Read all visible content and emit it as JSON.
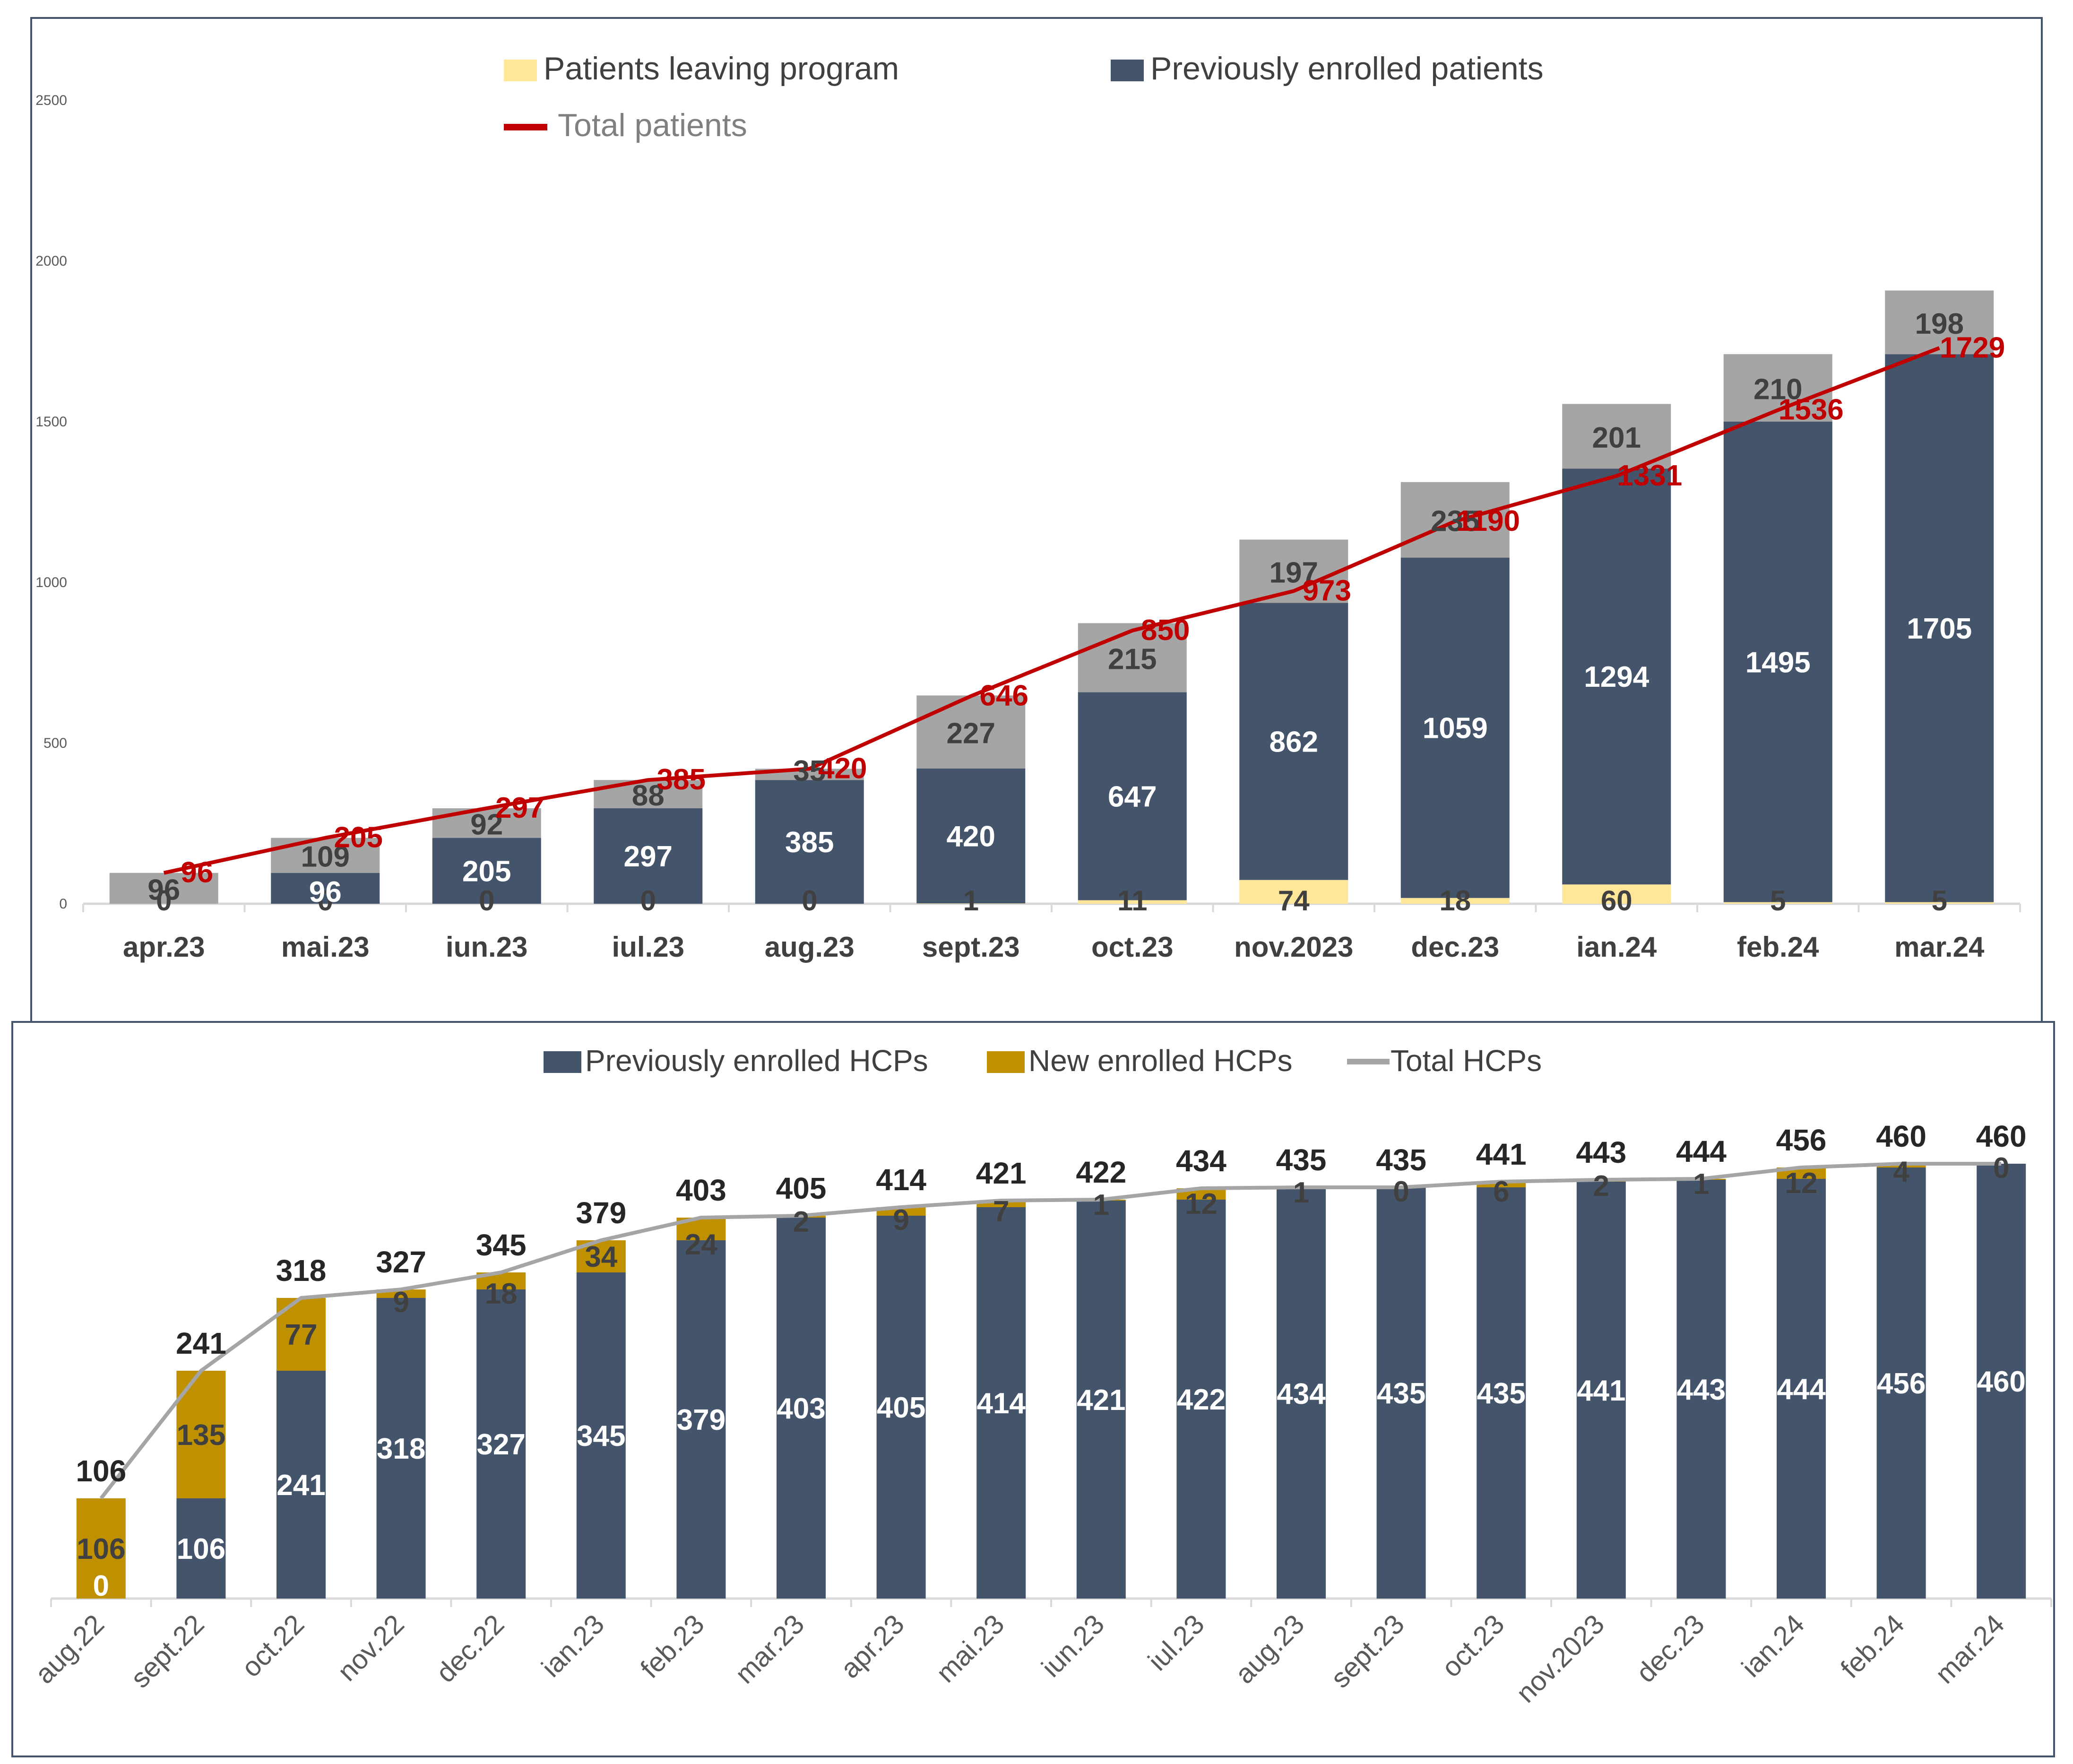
{
  "colors": {
    "previously_enrolled": "#44546a",
    "leaving": "#ffe699",
    "new_patients": "#a5a5a5",
    "total_line_top": "#c00000",
    "new_hcps": "#bf9000",
    "total_line_bottom": "#a5a5a5",
    "axis": "#d9d9d9",
    "frame": "#44546a",
    "label_dark": "#404040",
    "label_light": "#ffffff"
  },
  "chart_data": [
    {
      "type": "bar",
      "stacked": true,
      "categories": [
        "apr.23",
        "mai.23",
        "iun.23",
        "iul.23",
        "aug.23",
        "sept.23",
        "oct.23",
        "nov.2023",
        "dec.23",
        "ian.24",
        "feb.24",
        "mar.24"
      ],
      "yticks": [
        "2500",
        "2000",
        "1500",
        "1000",
        "500",
        "0"
      ],
      "ylim": [
        0,
        2500
      ],
      "legend_position": "top",
      "grid": false,
      "series": [
        {
          "name": "Patients leaving program",
          "values": [
            0,
            0,
            0,
            0,
            0,
            1,
            11,
            74,
            18,
            60,
            5,
            5
          ]
        },
        {
          "name": "Previously enrolled patients",
          "values": [
            0,
            96,
            205,
            297,
            385,
            420,
            647,
            862,
            1059,
            1294,
            1495,
            1705
          ]
        },
        {
          "name": "",
          "values": [
            96,
            109,
            92,
            88,
            35,
            227,
            215,
            197,
            235,
            201,
            210,
            198
          ]
        },
        {
          "name": "Total patients",
          "type": "line",
          "values": [
            96,
            205,
            297,
            385,
            420,
            646,
            850,
            973,
            1190,
            1331,
            1536,
            1729
          ]
        }
      ]
    },
    {
      "type": "bar",
      "stacked": true,
      "categories": [
        "aug.22",
        "sept.22",
        "oct.22",
        "nov.22",
        "dec.22",
        "ian.23",
        "feb.23",
        "mar.23",
        "apr.23",
        "mai.23",
        "iun.23",
        "iul.23",
        "aug.23",
        "sept.23",
        "oct.23",
        "nov.2023",
        "dec.23",
        "ian.24",
        "feb.24",
        "mar.24"
      ],
      "legend_position": "top",
      "grid": false,
      "series": [
        {
          "name": "Previously enrolled HCPs",
          "values": [
            0,
            106,
            241,
            318,
            327,
            345,
            379,
            403,
            405,
            414,
            421,
            422,
            434,
            435,
            435,
            441,
            443,
            444,
            456,
            460
          ]
        },
        {
          "name": "New enrolled HCPs",
          "values": [
            106,
            135,
            77,
            9,
            18,
            34,
            24,
            2,
            9,
            7,
            1,
            12,
            1,
            0,
            6,
            2,
            1,
            12,
            4,
            0
          ]
        },
        {
          "name": "Total HCPs",
          "type": "line",
          "values": [
            106,
            241,
            318,
            327,
            345,
            379,
            403,
            405,
            414,
            421,
            422,
            434,
            435,
            435,
            441,
            443,
            444,
            456,
            460,
            460
          ]
        }
      ]
    }
  ]
}
